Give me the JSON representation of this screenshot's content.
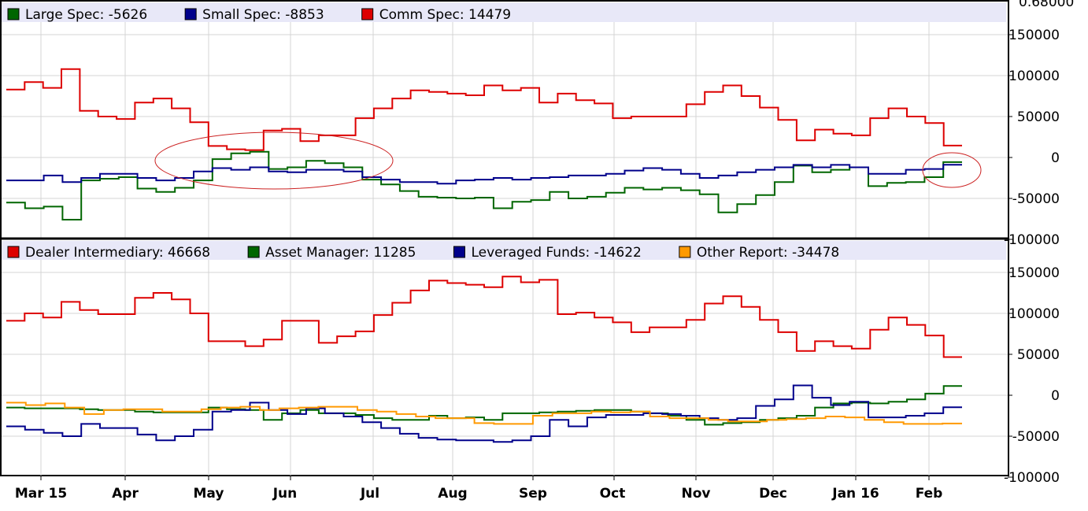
{
  "chart_data": [
    {
      "type": "line",
      "ylim": [
        -100000,
        175000
      ],
      "yticks": [
        -100000,
        -50000,
        0,
        50000,
        100000,
        150000
      ],
      "top_tick_label": "0.68000",
      "grid": true,
      "legend": "top-left",
      "series": [
        {
          "name": "Large Spec",
          "legend_value": "-5626",
          "color": "#006600",
          "step": true,
          "values": [
            -55000,
            -62000,
            -60000,
            -76000,
            -28000,
            -26000,
            -24000,
            -38000,
            -42000,
            -37000,
            -28000,
            -2000,
            5000,
            7000,
            -14000,
            -12000,
            -4000,
            -7000,
            -12000,
            -27000,
            -33000,
            -41000,
            -48000,
            -49000,
            -50000,
            -49000,
            -62000,
            -54000,
            -52000,
            -42000,
            -50000,
            -48000,
            -43000,
            -37000,
            -39000,
            -37000,
            -40000,
            -45000,
            -67000,
            -57000,
            -46000,
            -30000,
            -10000,
            -18000,
            -15000,
            -12000,
            -35000,
            -31000,
            -30000,
            -24000,
            -5626
          ]
        },
        {
          "name": "Small Spec",
          "legend_value": "-8853",
          "color": "#00008b",
          "step": true,
          "values": [
            -28000,
            -28000,
            -22000,
            -30000,
            -25000,
            -20000,
            -20000,
            -25000,
            -28000,
            -25000,
            -17000,
            -13000,
            -15000,
            -12000,
            -17000,
            -18000,
            -15000,
            -15000,
            -17000,
            -24000,
            -27000,
            -30000,
            -30000,
            -32000,
            -28000,
            -27000,
            -25000,
            -27000,
            -25000,
            -24000,
            -22000,
            -22000,
            -20000,
            -16000,
            -13000,
            -15000,
            -20000,
            -25000,
            -22000,
            -18000,
            -15000,
            -12000,
            -9000,
            -12000,
            -9000,
            -12000,
            -20000,
            -20000,
            -15000,
            -14000,
            -8853
          ]
        },
        {
          "name": "Comm Spec",
          "legend_value": "14479",
          "color": "#dd0000",
          "step": true,
          "values": [
            83000,
            92000,
            85000,
            108000,
            57000,
            50000,
            47000,
            67000,
            72000,
            60000,
            43000,
            14000,
            10000,
            9000,
            33000,
            35000,
            20000,
            27000,
            27000,
            48000,
            60000,
            72000,
            82000,
            80000,
            78000,
            76000,
            88000,
            82000,
            85000,
            67000,
            78000,
            70000,
            66000,
            48000,
            50000,
            50000,
            50000,
            65000,
            80000,
            88000,
            75000,
            61000,
            46000,
            21000,
            34000,
            29000,
            27000,
            48000,
            60000,
            50000,
            42000,
            14479
          ]
        }
      ]
    },
    {
      "type": "line",
      "ylim": [
        -100000,
        175000
      ],
      "yticks": [
        -100000,
        -50000,
        0,
        50000,
        100000,
        150000
      ],
      "grid": true,
      "legend": "top-left",
      "x_tick_labels": [
        "Mar 15",
        "Apr",
        "May",
        "Jun",
        "Jul",
        "Aug",
        "Sep",
        "Oct",
        "Nov",
        "Dec",
        "Jan 16",
        "Feb"
      ],
      "series": [
        {
          "name": "Dealer Intermediary",
          "legend_value": "46668",
          "color": "#dd0000",
          "step": true,
          "values": [
            91000,
            100000,
            95000,
            114000,
            104000,
            99000,
            99000,
            119000,
            125000,
            117000,
            100000,
            66000,
            66000,
            60000,
            68000,
            91000,
            91000,
            64000,
            72000,
            78000,
            98000,
            113000,
            128000,
            140000,
            137000,
            135000,
            132000,
            145000,
            138000,
            141000,
            99000,
            101000,
            95000,
            89000,
            77000,
            83000,
            83000,
            92000,
            112000,
            121000,
            108000,
            92000,
            77000,
            54000,
            66000,
            60000,
            57000,
            80000,
            95000,
            86000,
            73000,
            46668
          ]
        },
        {
          "name": "Asset Manager",
          "legend_value": "11285",
          "color": "#006600",
          "step": true,
          "values": [
            -15000,
            -16000,
            -16000,
            -16000,
            -17000,
            -18000,
            -18000,
            -20000,
            -21000,
            -21000,
            -21000,
            -15000,
            -17000,
            -18000,
            -30000,
            -22000,
            -18000,
            -22000,
            -22000,
            -24000,
            -28000,
            -30000,
            -30000,
            -25000,
            -28000,
            -27000,
            -30000,
            -22000,
            -22000,
            -21000,
            -20000,
            -19000,
            -18000,
            -18000,
            -20000,
            -22000,
            -25000,
            -30000,
            -36000,
            -34000,
            -33000,
            -30000,
            -28000,
            -25000,
            -15000,
            -10000,
            -9000,
            -10000,
            -8000,
            -5000,
            2000,
            11285
          ]
        },
        {
          "name": "Leveraged Funds",
          "legend_value": "-14622",
          "color": "#00008b",
          "step": true,
          "values": [
            -38000,
            -42000,
            -46000,
            -50000,
            -35000,
            -40000,
            -40000,
            -48000,
            -55000,
            -50000,
            -42000,
            -20000,
            -18000,
            -9000,
            -18000,
            -23000,
            -16000,
            -22000,
            -26000,
            -33000,
            -40000,
            -47000,
            -52000,
            -54000,
            -55000,
            -55000,
            -57000,
            -55000,
            -50000,
            -30000,
            -38000,
            -27000,
            -24000,
            -24000,
            -22000,
            -23000,
            -25000,
            -28000,
            -30000,
            -28000,
            -13000,
            -5000,
            12000,
            -3000,
            -12000,
            -8000,
            -27000,
            -27000,
            -25000,
            -22000,
            -14622
          ]
        },
        {
          "name": "Other Report",
          "legend_value": "-34478",
          "color": "#ff9900",
          "step": true,
          "values": [
            -9000,
            -12000,
            -10000,
            -15000,
            -23000,
            -18000,
            -17000,
            -17000,
            -20000,
            -20000,
            -17000,
            -15000,
            -14000,
            -18000,
            -16000,
            -15000,
            -14000,
            -14000,
            -18000,
            -20000,
            -23000,
            -26000,
            -28000,
            -28000,
            -34000,
            -35000,
            -35000,
            -25000,
            -22000,
            -22000,
            -20000,
            -21000,
            -20000,
            -26000,
            -28000,
            -28000,
            -30000,
            -32000,
            -32000,
            -30000,
            -29000,
            -28000,
            -26000,
            -27000,
            -30000,
            -33000,
            -35000,
            -35000,
            -34478
          ]
        }
      ]
    }
  ],
  "legend_separator": ": "
}
